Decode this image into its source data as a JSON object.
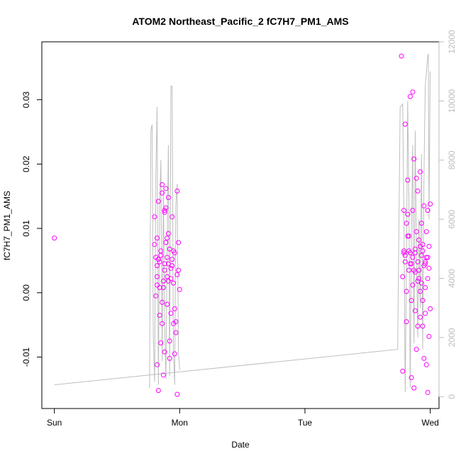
{
  "chart_data": {
    "type": "scatter",
    "title": "ATOM2 Northeast_Pacific_2 fC7H7_PM1_AMS",
    "xlabel": "Date",
    "ylabel": "fC7H7_PM1_AMS",
    "x_ticks": [
      {
        "label": "Sun",
        "day": 0
      },
      {
        "label": "Mon",
        "day": 1
      },
      {
        "label": "Tue",
        "day": 2
      },
      {
        "label": "Wed",
        "day": 3
      }
    ],
    "xlim_days": [
      -0.1,
      3.07
    ],
    "ylim": [
      -0.018,
      0.039
    ],
    "y_ticks": [
      -0.01,
      0.0,
      0.01,
      0.02,
      0.03
    ],
    "y_tick_labels": [
      "-0.01",
      "0.00",
      "0.01",
      "0.02",
      "0.03"
    ],
    "y2_ticks": [
      0,
      2000,
      4000,
      6000,
      8000,
      10000,
      12000
    ],
    "y2lim": [
      -400,
      12000
    ],
    "grid": false,
    "colors": {
      "points": "#ff00ff",
      "line": "#bebebe",
      "axis": "#000000",
      "right_axis": "#bdbdbd"
    },
    "series": [
      {
        "kind": "points",
        "x": [
          0.0,
          0.8,
          0.8,
          0.81,
          0.81,
          0.82,
          0.82,
          0.82,
          0.82,
          0.83,
          0.83,
          0.84,
          0.84,
          0.85,
          0.85,
          0.86,
          0.86,
          0.86,
          0.87,
          0.87,
          0.88,
          0.88,
          0.88,
          0.89,
          0.89,
          0.9,
          0.9,
          0.9,
          0.91,
          0.91,
          0.92,
          0.92,
          0.93,
          0.93,
          0.94,
          0.94,
          0.95,
          0.95,
          0.96,
          0.96,
          0.97,
          0.98,
          0.98,
          0.99,
          0.99,
          1.0,
          0.82,
          0.85,
          0.88,
          0.9,
          0.92,
          0.94,
          0.97,
          0.83,
          0.87,
          0.89,
          0.91,
          0.93,
          0.96,
          0.98,
          0.84,
          0.86,
          0.88,
          0.91,
          0.95,
          2.77,
          2.78,
          2.78,
          2.79,
          2.79,
          2.8,
          2.8,
          2.81,
          2.81,
          2.82,
          2.82,
          2.83,
          2.83,
          2.84,
          2.85,
          2.85,
          2.86,
          2.86,
          2.87,
          2.87,
          2.88,
          2.88,
          2.89,
          2.89,
          2.9,
          2.9,
          2.91,
          2.91,
          2.92,
          2.92,
          2.93,
          2.93,
          2.94,
          2.94,
          2.95,
          2.95,
          2.96,
          2.96,
          2.97,
          2.97,
          2.98,
          2.98,
          2.99,
          2.99,
          3.0,
          3.0,
          2.79,
          2.82,
          2.84,
          2.86,
          2.88,
          2.9,
          2.92,
          2.94,
          2.96,
          2.98,
          2.8,
          2.83,
          2.85,
          2.87,
          2.89,
          2.91,
          2.93,
          2.95,
          2.97,
          2.99,
          2.81,
          2.84,
          2.86,
          2.88,
          2.9,
          2.92,
          2.94,
          2.96,
          2.98
        ],
        "y": [
          0.0085,
          0.0118,
          0.0075,
          -0.0005,
          0.0055,
          0.0085,
          -0.0112,
          0.0042,
          0.0012,
          -0.0152,
          0.0142,
          0.0008,
          0.0048,
          -0.0078,
          0.0065,
          0.0168,
          -0.0048,
          0.0155,
          0.0018,
          -0.0128,
          0.0128,
          0.0045,
          -0.0092,
          0.0162,
          0.0078,
          0.0055,
          0.0025,
          -0.0018,
          0.0148,
          0.0092,
          -0.0102,
          0.0068,
          0.0038,
          -0.0032,
          0.0052,
          0.0118,
          -0.0048,
          0.0015,
          0.0062,
          -0.0025,
          -0.0045,
          0.0158,
          -0.0158,
          0.0035,
          0.0078,
          0.0005,
          0.0025,
          0.0058,
          0.0035,
          0.0085,
          -0.0075,
          0.0042,
          -0.0062,
          0.0052,
          0.0008,
          0.0132,
          0.0045,
          0.0022,
          -0.0095,
          0.0028,
          -0.0035,
          -0.0015,
          0.0125,
          0.0018,
          0.0065,
          0.0368,
          0.0025,
          -0.0122,
          0.0128,
          0.0065,
          0.0262,
          0.0058,
          0.0002,
          -0.0045,
          0.0175,
          0.0088,
          0.0065,
          0.0035,
          0.0305,
          -0.0132,
          0.0045,
          0.0312,
          0.0128,
          -0.0148,
          0.0208,
          -0.0028,
          0.0062,
          0.0178,
          0.0095,
          -0.0052,
          0.0158,
          0.0035,
          0.0082,
          -0.0038,
          0.0188,
          0.0015,
          0.0108,
          -0.0052,
          0.0065,
          0.0135,
          -0.0102,
          0.0045,
          0.0008,
          -0.0112,
          0.0055,
          0.0128,
          -0.0155,
          0.0072,
          0.0038,
          -0.0025,
          0.0138,
          0.0062,
          0.0122,
          0.0045,
          0.0055,
          0.0068,
          0.0018,
          0.0072,
          -0.0012,
          0.0048,
          0.0022,
          0.0048,
          0.0088,
          -0.0012,
          0.0035,
          -0.0088,
          0.0022,
          0.0058,
          0.0042,
          0.0095,
          -0.0068,
          0.0108,
          0.0062,
          0.0012,
          0.0032,
          0.0048,
          0.0002,
          0.0075,
          -0.0032,
          0.0055
        ]
      },
      {
        "kind": "line",
        "axis": "right",
        "x": [
          0.0,
          2.74,
          2.76,
          2.78,
          2.79,
          2.8,
          2.81,
          2.82,
          2.83,
          2.84,
          2.85,
          2.86,
          2.87,
          2.88,
          2.89,
          2.9,
          2.91,
          2.92,
          2.93,
          2.94,
          2.95,
          2.96,
          2.97,
          2.98,
          2.985,
          2.99,
          3.0
        ],
        "y": [
          400,
          1600,
          9800,
          9900,
          6000,
          150,
          4200,
          10000,
          6500,
          300,
          5500,
          8500,
          1800,
          9000,
          4800,
          2000,
          6000,
          3000,
          8200,
          1600,
          7500,
          10500,
          11000,
          11500,
          11600,
          6000,
          11000
        ]
      },
      {
        "kind": "line",
        "axis": "right",
        "x": [
          0.76,
          0.77,
          0.78,
          0.79,
          0.8,
          0.81,
          0.82,
          0.83,
          0.84,
          0.85,
          0.86,
          0.87,
          0.88,
          0.89,
          0.9,
          0.91,
          0.92,
          0.93,
          0.94,
          0.95,
          0.96,
          0.97,
          0.98,
          0.99,
          1.0
        ],
        "y": [
          300,
          9000,
          9200,
          2000,
          500,
          7500,
          9800,
          400,
          6500,
          8000,
          1200,
          7000,
          2500,
          600,
          5200,
          8500,
          700,
          10500,
          10500,
          1500,
          400,
          6500,
          7200,
          1500,
          900
        ]
      }
    ]
  }
}
